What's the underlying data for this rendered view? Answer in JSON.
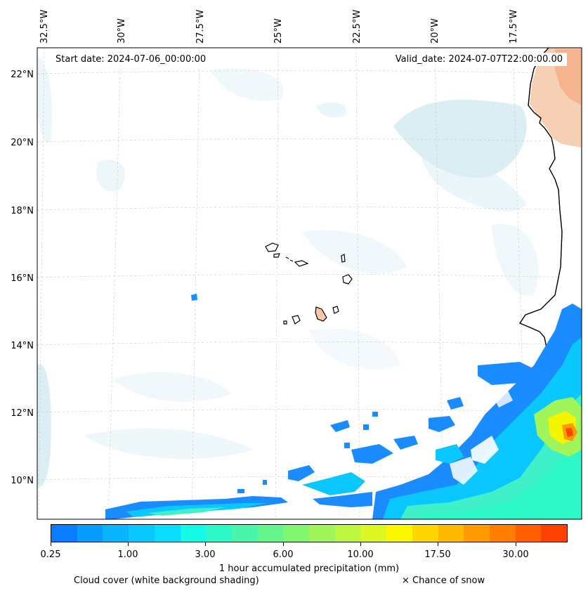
{
  "header": {
    "start_date": "Start date: 2024-07-06_00:00:00",
    "valid_date": "Valid_date: 2024-07-07T22:00:00.00"
  },
  "map": {
    "longitude_labels": [
      "32.5°W",
      "30°W",
      "27.5°W",
      "25°W",
      "22.5°W",
      "20°W",
      "17.5°W"
    ],
    "latitude_labels": [
      "22°N",
      "20°N",
      "18°N",
      "16°N",
      "14°N",
      "12°N",
      "10°N"
    ],
    "colors": {
      "cloud": "#cfe9f0",
      "land_arid": "#f6c7a8",
      "coast": "#000000",
      "precip_low": "#1a8cff",
      "precip_mid": "#3ff0c8",
      "precip_high": "#f5f500",
      "precip_max": "#ff4500"
    }
  },
  "colorbar": {
    "colors": [
      "#0a7dff",
      "#0a9bff",
      "#0ab4ff",
      "#0ac8ff",
      "#0adcff",
      "#14fae6",
      "#2ef7c8",
      "#48f5aa",
      "#64f58c",
      "#82f570",
      "#a0f55a",
      "#bef541",
      "#dcf523",
      "#faf500",
      "#ffd700",
      "#ffb900",
      "#ff9b00",
      "#ff7d00",
      "#ff5f00",
      "#ff4100"
    ],
    "tick_labels": [
      "0.25",
      "1.00",
      "3.00",
      "6.00",
      "10.00",
      "17.50",
      "30.00"
    ],
    "title": "1 hour accumulated precipitation (mm)"
  },
  "footnotes": {
    "cloud": "Cloud cover (white background shading)",
    "snow": "× Chance of snow"
  }
}
